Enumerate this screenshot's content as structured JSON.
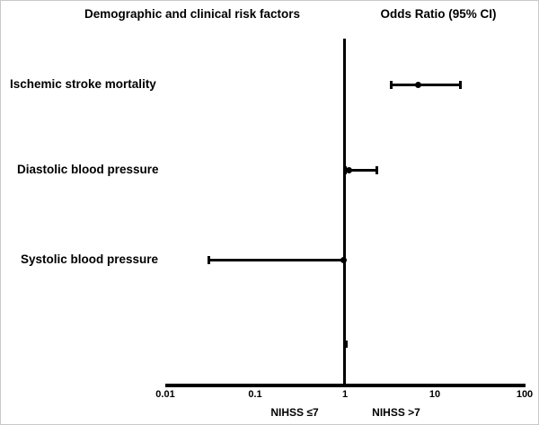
{
  "header": {
    "left_title": "Demographic and clinical risk factors",
    "right_title": "Odds Ratio (95% CI)"
  },
  "colors": {
    "ink": "#000000",
    "background": "#ffffff"
  },
  "chart_data": {
    "type": "forest",
    "title": "Odds Ratio (95% CI)",
    "xlabel": "",
    "ylabel": "",
    "x_axis": {
      "scale": "log10",
      "xlim": [
        0.01,
        100
      ],
      "ticks": [
        0.01,
        0.1,
        1,
        10,
        100
      ],
      "tick_labels": [
        "0.01",
        "0.1",
        "1",
        "10",
        "100"
      ],
      "reference_line": 1,
      "group_labels": [
        "NIHSS ≤7",
        "NIHSS >7"
      ]
    },
    "rows": [
      {
        "label": "Ischemic stroke mortality",
        "or": 6.6,
        "ci_low": 3.2,
        "ci_high": 19.5
      },
      {
        "label": "Diastolic blood pressure",
        "or": 1.1,
        "ci_low": 1.0,
        "ci_high": 2.3
      },
      {
        "label": "Systolic blood pressure",
        "or": 0.97,
        "ci_low": 0.03,
        "ci_high": 1.0
      },
      {
        "label": "",
        "or": 1.0,
        "ci_low": 1.0,
        "ci_high": 1.0
      }
    ]
  }
}
